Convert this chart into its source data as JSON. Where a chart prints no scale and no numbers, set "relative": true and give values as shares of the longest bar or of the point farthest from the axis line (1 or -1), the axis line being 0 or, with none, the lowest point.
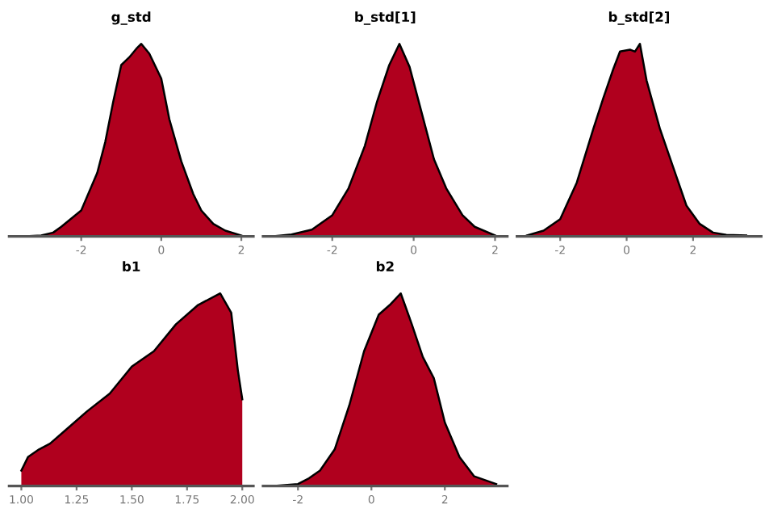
{
  "chart_data": [
    {
      "type": "area",
      "title": "g_std",
      "relative": true,
      "color": "#b0001e",
      "xlim": [
        -3.8,
        2.3
      ],
      "xticks": [
        -2,
        0,
        2
      ],
      "x": [
        -3.5,
        -3.0,
        -2.7,
        -2.5,
        -2.0,
        -1.6,
        -1.4,
        -1.2,
        -1.0,
        -0.8,
        -0.6,
        -0.5,
        -0.3,
        0.0,
        0.2,
        0.5,
        0.8,
        1.0,
        1.3,
        1.6,
        2.0
      ],
      "values": [
        0,
        0.005,
        0.02,
        0.05,
        0.135,
        0.33,
        0.49,
        0.7,
        0.89,
        0.93,
        0.98,
        1.0,
        0.95,
        0.82,
        0.61,
        0.39,
        0.22,
        0.135,
        0.065,
        0.03,
        0.005
      ]
    },
    {
      "type": "area",
      "title": "b_std[1]",
      "relative": true,
      "color": "#b0001e",
      "xlim": [
        -3.7,
        2.3
      ],
      "xticks": [
        -2,
        0,
        2
      ],
      "x": [
        -3.5,
        -3.0,
        -2.5,
        -2.0,
        -1.6,
        -1.2,
        -0.9,
        -0.6,
        -0.35,
        -0.1,
        0.2,
        0.5,
        0.8,
        1.2,
        1.5,
        2.0
      ],
      "values": [
        0,
        0.01,
        0.035,
        0.11,
        0.25,
        0.47,
        0.7,
        0.89,
        1.0,
        0.88,
        0.64,
        0.4,
        0.25,
        0.11,
        0.05,
        0.005
      ]
    },
    {
      "type": "area",
      "title": "b_std[2]",
      "relative": true,
      "color": "#b0001e",
      "xlim": [
        -3.3,
        4.05
      ],
      "xticks": [
        -2,
        0,
        2
      ],
      "x": [
        -3.0,
        -2.5,
        -2.0,
        -1.5,
        -1.0,
        -0.7,
        -0.4,
        -0.2,
        0.1,
        0.25,
        0.4,
        0.6,
        1.0,
        1.4,
        1.8,
        2.2,
        2.6,
        3.0,
        3.6
      ],
      "values": [
        0.005,
        0.03,
        0.09,
        0.28,
        0.56,
        0.72,
        0.87,
        0.96,
        0.97,
        0.96,
        1.0,
        0.81,
        0.56,
        0.36,
        0.16,
        0.065,
        0.02,
        0.008,
        0.005
      ]
    },
    {
      "type": "area",
      "title": "b1",
      "relative": true,
      "color": "#b0001e",
      "xlim": [
        0.945,
        2.05
      ],
      "xticks": [
        {
          "value": 1,
          "label": "1.00"
        },
        1.25,
        {
          "value": 1.5,
          "label": "1.50"
        },
        1.75,
        {
          "value": 2,
          "label": "2.00"
        }
      ],
      "x": [
        1.0,
        1.03,
        1.08,
        1.13,
        1.2,
        1.3,
        1.4,
        1.5,
        1.6,
        1.7,
        1.8,
        1.9,
        1.95,
        1.98,
        2.0
      ],
      "values": [
        0.08,
        0.15,
        0.19,
        0.22,
        0.29,
        0.39,
        0.48,
        0.62,
        0.7,
        0.84,
        0.94,
        1.0,
        0.9,
        0.6,
        0.45
      ]
    },
    {
      "type": "area",
      "title": "b2",
      "relative": true,
      "color": "#b0001e",
      "xlim": [
        -2.95,
        3.7
      ],
      "xticks": [
        -2,
        0,
        2
      ],
      "x": [
        -2.65,
        -2.0,
        -1.7,
        -1.4,
        -1.0,
        -0.6,
        -0.2,
        0.2,
        0.5,
        0.8,
        1.1,
        1.4,
        1.7,
        2.0,
        2.4,
        2.8,
        3.4
      ],
      "values": [
        0,
        0.01,
        0.04,
        0.08,
        0.19,
        0.42,
        0.7,
        0.89,
        0.94,
        1.0,
        0.84,
        0.67,
        0.56,
        0.33,
        0.15,
        0.05,
        0.01
      ]
    }
  ]
}
